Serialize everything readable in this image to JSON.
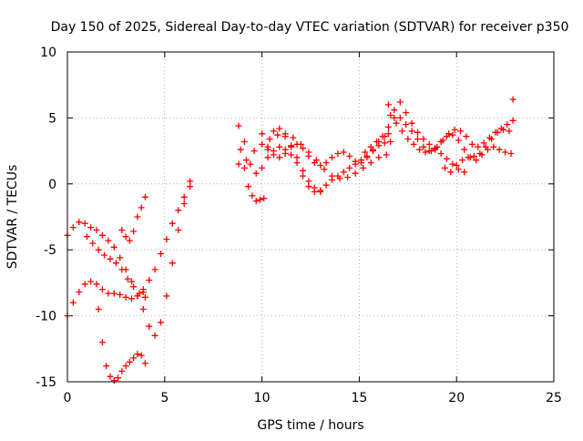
{
  "chart_data": {
    "type": "scatter",
    "title": "Day 150 of 2025, Sidereal Day-to-day VTEC variation (SDTVAR) for receiver p350",
    "xlabel": "GPS time / hours",
    "ylabel": "SDTVAR / TECUs",
    "xlim": [
      0,
      25
    ],
    "ylim": [
      -15,
      10
    ],
    "xticks": [
      0,
      5,
      10,
      15,
      20,
      25
    ],
    "yticks": [
      -15,
      -10,
      -5,
      0,
      5,
      10
    ],
    "xtick_labels": [
      "0",
      "5",
      "10",
      "15",
      "20",
      "25"
    ],
    "ytick_labels": [
      "-15",
      "-10",
      "-5",
      "0",
      "5",
      "10"
    ],
    "grid": true,
    "marker": "+",
    "color": "#ff0000",
    "series": [
      {
        "x": [
          0.0,
          0.3,
          0.6,
          0.9,
          1.2,
          1.5,
          1.8,
          2.1,
          2.4,
          2.7,
          3.0,
          3.3,
          3.6,
          3.9,
          4.2,
          4.5,
          4.8,
          5.1,
          5.4,
          5.7,
          6.0,
          6.3
        ],
        "y": [
          -3.9,
          -3.3,
          -2.9,
          -3.0,
          -3.3,
          -3.5,
          -3.9,
          -4.3,
          -4.8,
          -5.6,
          -6.5,
          -7.4,
          -8.5,
          -9.5,
          -10.8,
          -11.5,
          -10.5,
          -8.5,
          -6.0,
          -3.5,
          -1.5,
          0.2
        ]
      },
      {
        "x": [
          0.0,
          0.3,
          0.6,
          0.9,
          1.2,
          1.5,
          1.8,
          2.1,
          2.4,
          2.7,
          3.0,
          3.3,
          3.6,
          3.9
        ],
        "y": [
          -10.0,
          -9.0,
          -8.2,
          -7.6,
          -7.4,
          -7.6,
          -8.0,
          -8.3,
          -8.3,
          -8.4,
          -8.6,
          -8.7,
          -8.5,
          -8.2
        ]
      },
      {
        "x": [
          1.6,
          1.8,
          2.0,
          2.2,
          2.4,
          2.6,
          2.8,
          3.0,
          3.2,
          3.4,
          3.6,
          3.8,
          4.0
        ],
        "y": [
          -9.5,
          -12.0,
          -13.8,
          -14.6,
          -14.9,
          -14.7,
          -14.2,
          -13.8,
          -13.5,
          -13.2,
          -12.9,
          -13.0,
          -13.6
        ]
      },
      {
        "x": [
          1.0,
          1.3,
          1.6,
          1.9,
          2.2,
          2.5,
          2.8,
          3.1,
          3.4,
          3.7,
          4.0
        ],
        "y": [
          -4.0,
          -4.5,
          -5.0,
          -5.4,
          -5.7,
          -6.0,
          -6.5,
          -7.2,
          -7.8,
          -8.3,
          -8.6
        ]
      },
      {
        "x": [
          2.8,
          3.0,
          3.2,
          3.4,
          3.6,
          3.8,
          4.0
        ],
        "y": [
          -3.5,
          -4.0,
          -4.3,
          -3.6,
          -2.5,
          -1.8,
          -1.0
        ]
      },
      {
        "x": [
          3.6,
          3.9,
          4.2,
          4.5,
          4.8,
          5.1,
          5.4,
          5.7,
          6.0,
          6.3
        ],
        "y": [
          -8.5,
          -8.0,
          -7.3,
          -6.5,
          -5.3,
          -4.2,
          -3.0,
          -2.0,
          -1.0,
          -0.2
        ]
      },
      {
        "x": [
          8.8,
          9.1,
          9.4,
          9.7,
          10.0,
          10.3,
          10.6,
          10.9,
          11.2,
          11.5,
          11.8,
          12.1,
          12.4,
          12.7,
          13.0,
          13.3,
          13.6,
          13.9,
          14.2,
          14.5,
          14.8,
          15.1,
          15.4,
          15.7,
          16.0,
          16.3,
          16.6
        ],
        "y": [
          4.4,
          3.2,
          1.5,
          0.8,
          1.2,
          2.0,
          2.5,
          2.8,
          2.6,
          2.2,
          1.6,
          0.6,
          -0.2,
          -0.6,
          -0.5,
          -0.1,
          0.3,
          0.6,
          0.9,
          1.2,
          1.5,
          1.8,
          2.1,
          2.5,
          2.9,
          3.1,
          3.2
        ]
      },
      {
        "x": [
          8.8,
          9.2,
          9.6,
          10.0,
          10.4,
          10.8,
          11.2,
          11.6,
          12.0,
          12.4,
          12.8,
          13.2,
          13.6,
          14.0,
          14.4,
          14.8,
          15.2,
          15.6,
          16.0,
          16.4
        ],
        "y": [
          1.5,
          1.8,
          2.5,
          3.0,
          3.4,
          3.7,
          3.8,
          3.5,
          3.0,
          2.4,
          1.8,
          1.1,
          0.6,
          0.4,
          0.5,
          0.8,
          1.2,
          1.6,
          2.0,
          2.2
        ]
      },
      {
        "x": [
          8.9,
          9.1,
          9.3,
          9.5,
          9.7,
          9.9,
          10.1,
          10.3,
          10.6,
          10.9,
          11.2,
          11.5,
          11.8,
          12.1,
          12.4,
          12.7,
          13.0
        ],
        "y": [
          2.6,
          1.2,
          -0.2,
          -0.9,
          -1.3,
          -1.2,
          -1.1,
          2.6,
          4.0,
          4.2,
          3.6,
          2.9,
          2.0,
          1.0,
          0.2,
          -0.3,
          -0.6
        ]
      },
      {
        "x": [
          10.0,
          10.3,
          10.6,
          10.9,
          11.2,
          11.5,
          11.8,
          12.1,
          12.4,
          12.7,
          13.0,
          13.3,
          13.6,
          13.9,
          14.2,
          14.5,
          14.8,
          15.1,
          15.4,
          15.7,
          16.0,
          16.3
        ],
        "y": [
          3.8,
          2.8,
          2.2,
          2.0,
          2.3,
          2.8,
          3.0,
          2.7,
          2.1,
          1.6,
          1.4,
          1.6,
          2.0,
          2.3,
          2.4,
          2.1,
          1.7,
          1.6,
          2.0,
          2.6,
          3.2,
          3.6
        ]
      },
      {
        "x": [
          16.5,
          16.8,
          17.1,
          17.4,
          17.7,
          18.0,
          18.3,
          18.6,
          18.9,
          19.2,
          19.5,
          19.8,
          20.1,
          20.4,
          20.7,
          21.0,
          21.3,
          21.6,
          21.9,
          22.2,
          22.5,
          22.8
        ],
        "y": [
          6.0,
          5.6,
          5.0,
          4.5,
          4.0,
          3.4,
          2.8,
          2.5,
          2.7,
          3.2,
          3.6,
          3.7,
          3.3,
          2.6,
          2.0,
          1.8,
          2.2,
          2.6,
          2.8,
          2.6,
          2.4,
          2.3
        ]
      },
      {
        "x": [
          16.6,
          16.9,
          17.2,
          17.5,
          17.8,
          18.1,
          18.4,
          18.7,
          19.0,
          19.3,
          19.6,
          19.9,
          20.2,
          20.5,
          20.8,
          21.1,
          21.4,
          21.7,
          22.0,
          22.3,
          22.6,
          22.9
        ],
        "y": [
          5.2,
          4.6,
          4.0,
          3.4,
          3.0,
          2.6,
          2.4,
          2.5,
          2.8,
          3.3,
          3.8,
          4.1,
          4.0,
          3.6,
          3.0,
          2.8,
          3.1,
          3.5,
          3.9,
          4.2,
          4.5,
          4.8
        ]
      },
      {
        "x": [
          16.5,
          16.8,
          17.1,
          17.4,
          17.7,
          18.0,
          18.3,
          18.6,
          18.9,
          19.2,
          19.5,
          19.8,
          20.1,
          20.4
        ],
        "y": [
          4.3,
          5.0,
          6.2,
          5.4,
          4.6,
          3.9,
          3.4,
          3.0,
          2.6,
          2.3,
          1.9,
          1.5,
          1.1,
          0.9
        ]
      },
      {
        "x": [
          19.4,
          19.7,
          20.0,
          20.3,
          20.6,
          20.9,
          21.2,
          21.5,
          21.8,
          22.1,
          22.4,
          22.7
        ],
        "y": [
          1.2,
          0.9,
          1.4,
          1.8,
          2.0,
          2.1,
          2.3,
          2.8,
          3.4,
          3.9,
          4.1,
          4.0
        ]
      },
      {
        "x": [
          15.3,
          15.6,
          15.9,
          16.2,
          16.5
        ],
        "y": [
          2.4,
          2.8,
          3.2,
          3.6,
          3.8
        ]
      },
      {
        "x": [
          22.9
        ],
        "y": [
          6.4
        ]
      }
    ]
  }
}
